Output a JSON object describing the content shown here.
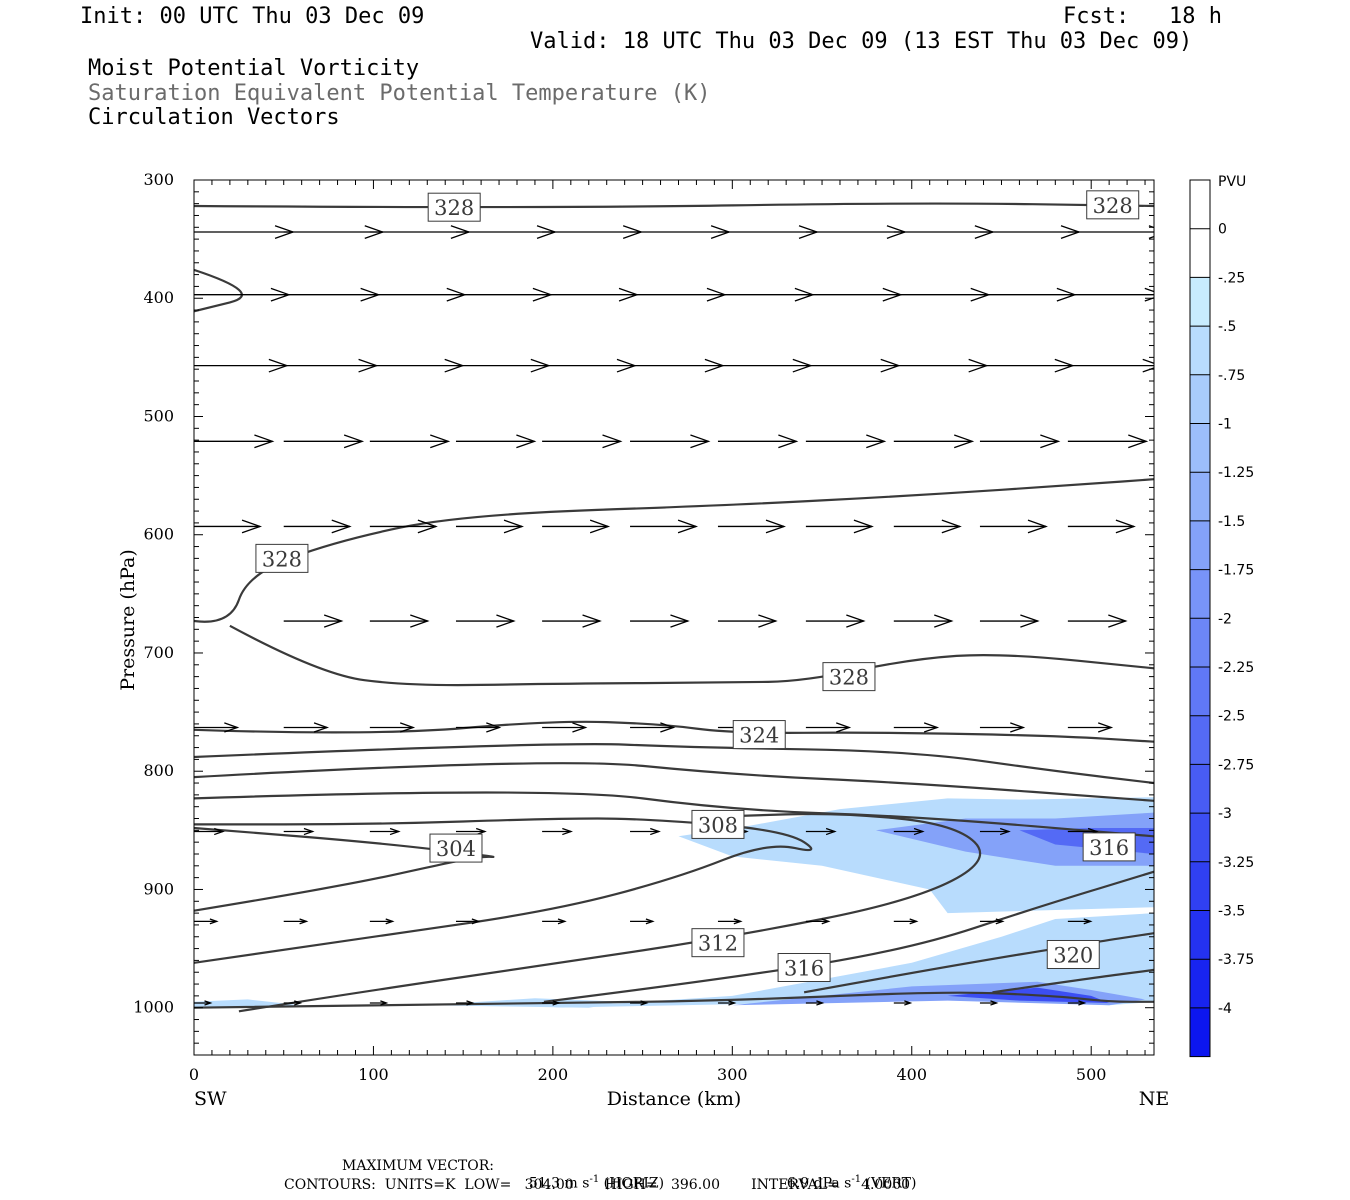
{
  "header": {
    "init": "Init: 00 UTC Thu 03 Dec 09",
    "fcst": "Fcst:   18 h",
    "valid": "Valid: 18 UTC Thu 03 Dec 09 (13 EST Thu 03 Dec 09)",
    "field1": "Moist Potential Vorticity",
    "field2": "Saturation Equivalent Potential Temperature (K)",
    "field3": "Circulation Vectors"
  },
  "footer": {
    "max_vector_label": "MAXIMUM VECTOR:",
    "max_vector_horiz": "51.3 m s",
    "horiz_exp": "-1",
    "horiz_tag": "(HORIZ)",
    "max_vector_vert": "6.9 dPa s",
    "vert_exp": "-1",
    "vert_tag": "(VERT)",
    "contours": "CONTOURS:  UNITS=K  LOW=   304.00       HIGH=   396.00       INTERVAL=     4.0000"
  },
  "chart_data": {
    "type": "contour",
    "xlabel": "Distance (km)",
    "ylabel": "Pressure (hPa)",
    "xlim": [
      0,
      535
    ],
    "ylim": [
      1040,
      300
    ],
    "x_ticks": [
      0,
      100,
      200,
      300,
      400,
      500
    ],
    "y_ticks": [
      300,
      400,
      500,
      600,
      700,
      800,
      900,
      1000
    ],
    "x_end_labels": {
      "left": "SW",
      "right": "NE"
    },
    "colorbar": {
      "units": "PVU",
      "labels": [
        "0",
        "-.25",
        "-.5",
        "-.75",
        "-1",
        "-1.25",
        "-1.5",
        "-1.75",
        "-2",
        "-2.25",
        "-2.5",
        "-2.75",
        "-3",
        "-3.25",
        "-3.5",
        "-3.75",
        "-4"
      ],
      "colors": [
        "#ffffff",
        "#ffffff",
        "#c8ecfe",
        "#b8dcfd",
        "#a8ccfc",
        "#9cbefb",
        "#90b0fa",
        "#84a2f9",
        "#7894f8",
        "#6c86f7",
        "#6078f6",
        "#546af5",
        "#485cf4",
        "#3c4ef3",
        "#3040f2",
        "#2432f1",
        "#1824f0",
        "#0c16ef"
      ]
    },
    "contour_labels": [
      {
        "value": "328",
        "x": 145,
        "p": 323
      },
      {
        "value": "328",
        "x": 512,
        "p": 321
      },
      {
        "value": "328",
        "x": 49,
        "p": 620
      },
      {
        "value": "328",
        "x": 365,
        "p": 720
      },
      {
        "value": "324",
        "x": 315,
        "p": 769
      },
      {
        "value": "308",
        "x": 292,
        "p": 845
      },
      {
        "value": "304",
        "x": 146,
        "p": 865
      },
      {
        "value": "316",
        "x": 510,
        "p": 864
      },
      {
        "value": "312",
        "x": 292,
        "p": 945
      },
      {
        "value": "316",
        "x": 340,
        "p": 966
      },
      {
        "value": "320",
        "x": 490,
        "p": 955
      }
    ],
    "contours": [
      [
        [
          0,
          322
        ],
        [
          200,
          324
        ],
        [
          400,
          319
        ],
        [
          535,
          322
        ]
      ],
      [
        [
          0,
          765
        ],
        [
          100,
          770
        ],
        [
          200,
          757
        ],
        [
          260,
          760
        ],
        [
          300,
          768
        ],
        [
          380,
          767
        ],
        [
          480,
          770
        ],
        [
          535,
          775
        ]
      ],
      [
        [
          0,
          788
        ],
        [
          200,
          775
        ],
        [
          280,
          780
        ],
        [
          400,
          783
        ],
        [
          480,
          800
        ],
        [
          535,
          810
        ]
      ],
      [
        [
          0,
          805
        ],
        [
          200,
          788
        ],
        [
          300,
          803
        ],
        [
          400,
          810
        ],
        [
          535,
          825
        ]
      ],
      [
        [
          0,
          823
        ],
        [
          200,
          813
        ],
        [
          300,
          833
        ],
        [
          400,
          838
        ],
        [
          535,
          855
        ]
      ],
      [
        [
          0,
          918
        ],
        [
          80,
          898
        ],
        [
          140,
          878
        ],
        [
          160,
          872
        ],
        [
          172,
          873
        ],
        [
          100,
          860
        ],
        [
          0,
          848
        ]
      ],
      [
        [
          0,
          962
        ],
        [
          100,
          940
        ],
        [
          200,
          918
        ],
        [
          270,
          890
        ],
        [
          320,
          860
        ],
        [
          350,
          870
        ],
        [
          330,
          850
        ],
        [
          250,
          840
        ],
        [
          200,
          840
        ],
        [
          100,
          845
        ],
        [
          0,
          845
        ]
      ],
      [
        [
          25,
          1003
        ],
        [
          100,
          985
        ],
        [
          200,
          963
        ],
        [
          300,
          940
        ],
        [
          400,
          910
        ],
        [
          445,
          875
        ],
        [
          425,
          845
        ],
        [
          360,
          835
        ],
        [
          300,
          838
        ]
      ],
      [
        [
          195,
          995
        ],
        [
          300,
          975
        ],
        [
          400,
          950
        ],
        [
          470,
          915
        ],
        [
          535,
          885
        ]
      ],
      [
        [
          340,
          987
        ],
        [
          420,
          965
        ],
        [
          500,
          945
        ],
        [
          535,
          937
        ]
      ],
      [
        [
          445,
          987
        ],
        [
          500,
          975
        ],
        [
          535,
          968
        ]
      ],
      [
        [
          0,
          1000
        ],
        [
          200,
          996
        ],
        [
          300,
          994
        ],
        [
          420,
          986
        ],
        [
          480,
          990
        ],
        [
          510,
          995
        ],
        [
          535,
          995
        ]
      ],
      [
        [
          0,
          673
        ],
        [
          20,
          677
        ],
        [
          30,
          633
        ],
        [
          80,
          605
        ],
        [
          150,
          583
        ],
        [
          300,
          575
        ],
        [
          400,
          567
        ],
        [
          500,
          557
        ],
        [
          535,
          553
        ]
      ],
      [
        [
          20,
          677
        ],
        [
          70,
          718
        ],
        [
          120,
          728
        ],
        [
          200,
          726
        ],
        [
          300,
          725
        ],
        [
          340,
          724
        ],
        [
          400,
          705
        ],
        [
          450,
          700
        ],
        [
          535,
          713
        ]
      ],
      [
        [
          0,
          376
        ],
        [
          40,
          396
        ],
        [
          0,
          411
        ]
      ]
    ],
    "shading": [
      {
        "level": "-.5",
        "points": [
          [
            200,
            1000
          ],
          [
            300,
            990
          ],
          [
            400,
            962
          ],
          [
            450,
            940
          ],
          [
            480,
            925
          ],
          [
            535,
            920
          ],
          [
            535,
            995
          ],
          [
            510,
            998
          ],
          [
            420,
            992
          ],
          [
            300,
            997
          ]
        ]
      },
      {
        "level": "-.5",
        "points": [
          [
            0,
            995
          ],
          [
            30,
            993
          ],
          [
            60,
            998
          ],
          [
            0,
            1000
          ]
        ]
      },
      {
        "level": "-.5",
        "points": [
          [
            130,
            998
          ],
          [
            190,
            992
          ],
          [
            240,
            995
          ],
          [
            220,
            1000
          ]
        ]
      },
      {
        "level": "-.5",
        "points": [
          [
            270,
            855
          ],
          [
            310,
            846
          ],
          [
            360,
            832
          ],
          [
            420,
            823
          ],
          [
            460,
            824
          ],
          [
            535,
            822
          ],
          [
            535,
            915
          ],
          [
            420,
            920
          ],
          [
            410,
            900
          ],
          [
            350,
            880
          ],
          [
            300,
            872
          ]
        ]
      },
      {
        "level": "-1.5",
        "points": [
          [
            380,
            850
          ],
          [
            430,
            840
          ],
          [
            480,
            840
          ],
          [
            535,
            835
          ],
          [
            535,
            880
          ],
          [
            480,
            880
          ],
          [
            430,
            868
          ]
        ]
      },
      {
        "level": "-2.5",
        "points": [
          [
            460,
            850
          ],
          [
            500,
            848
          ],
          [
            535,
            848
          ],
          [
            535,
            870
          ],
          [
            480,
            862
          ]
        ]
      },
      {
        "level": "-1.5",
        "points": [
          [
            300,
            998
          ],
          [
            400,
            982
          ],
          [
            470,
            978
          ],
          [
            500,
            985
          ],
          [
            530,
            993
          ],
          [
            510,
            998
          ],
          [
            420,
            994
          ]
        ]
      },
      {
        "level": "-3",
        "points": [
          [
            420,
            990
          ],
          [
            470,
            983
          ],
          [
            500,
            990
          ],
          [
            510,
            996
          ],
          [
            460,
            994
          ]
        ]
      }
    ],
    "vectors": [
      {
        "p": 344,
        "x": [
          0,
          50,
          98,
          146,
          194,
          243,
          292,
          341,
          390,
          438,
          487
        ],
        "u": 48,
        "w": 0
      },
      {
        "p": 397,
        "x": [
          0,
          50,
          98,
          146,
          194,
          243,
          292,
          341,
          390,
          438,
          487
        ],
        "u": 46,
        "w": 0
      },
      {
        "p": 457,
        "x": [
          0,
          50,
          98,
          146,
          194,
          243,
          292,
          341,
          390,
          438,
          487
        ],
        "u": 45,
        "w": 0
      },
      {
        "p": 521,
        "x": [
          0,
          50,
          98,
          146,
          194,
          243,
          292,
          341,
          390,
          438,
          487
        ],
        "u": 38,
        "w": 0
      },
      {
        "p": 593,
        "x": [
          0,
          50,
          98,
          146,
          194,
          243,
          292,
          341,
          390,
          438,
          487
        ],
        "u": 32,
        "w": 0
      },
      {
        "p": 673,
        "x": [
          50,
          98,
          146,
          194,
          243,
          292,
          341,
          390,
          438,
          487
        ],
        "u": 28,
        "w": 0
      },
      {
        "p": 763,
        "x": [
          0,
          50,
          98,
          146,
          194,
          243,
          292,
          341,
          390,
          438,
          487
        ],
        "u": 21,
        "w": 0
      },
      {
        "p": 851,
        "x": [
          0,
          50,
          98,
          146,
          194,
          243,
          292,
          341,
          390,
          438,
          487
        ],
        "u": 14,
        "w": 0
      },
      {
        "p": 927,
        "x": [
          0,
          50,
          98,
          146,
          194,
          243,
          292,
          341,
          390,
          438,
          487
        ],
        "u": 11,
        "w": 0
      },
      {
        "p": 996,
        "x": [
          0,
          50,
          98,
          146,
          194,
          243,
          292,
          341,
          390,
          438,
          487
        ],
        "u": 8,
        "w": 0
      }
    ]
  }
}
